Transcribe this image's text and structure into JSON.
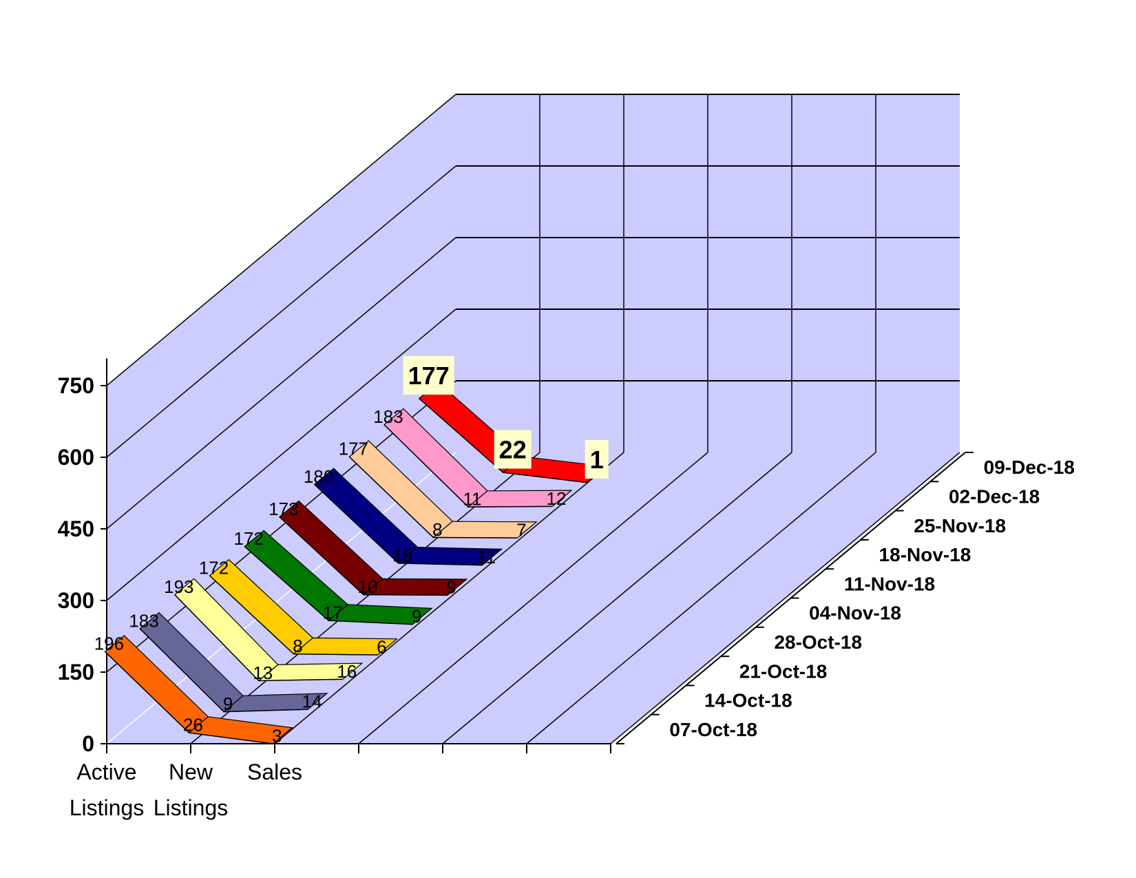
{
  "chart_data": {
    "type": "line",
    "subtype": "3d-line",
    "categories": [
      "Active Listings",
      "New Listings",
      "Sales"
    ],
    "category_label_lines": [
      [
        "Active",
        "Listings"
      ],
      [
        "New",
        "Listings"
      ],
      [
        "Sales"
      ]
    ],
    "y_ticks": [
      "0",
      "150",
      "300",
      "450",
      "600",
      "750"
    ],
    "ylim": [
      0,
      750
    ],
    "grid": true,
    "series": [
      {
        "name": "07-Oct-18",
        "values": [
          196,
          26,
          3
        ],
        "color": "#ff6600"
      },
      {
        "name": "14-Oct-18",
        "values": [
          183,
          9,
          14
        ],
        "color": "#666699"
      },
      {
        "name": "21-Oct-18",
        "values": [
          193,
          13,
          16
        ],
        "color": "#ffff99"
      },
      {
        "name": "28-Oct-18",
        "values": [
          172,
          8,
          6
        ],
        "color": "#ffcc00"
      },
      {
        "name": "04-Nov-18",
        "values": [
          172,
          17,
          9
        ],
        "color": "#007700"
      },
      {
        "name": "11-Nov-18",
        "values": [
          173,
          10,
          9
        ],
        "color": "#770000"
      },
      {
        "name": "18-Nov-18",
        "values": [
          180,
          15,
          11
        ],
        "color": "#000080"
      },
      {
        "name": "25-Nov-18",
        "values": [
          177,
          8,
          7
        ],
        "color": "#ffcc99"
      },
      {
        "name": "02-Dec-18",
        "values": [
          183,
          11,
          12
        ],
        "color": "#ff99cc"
      },
      {
        "name": "09-Dec-18",
        "values": [
          177,
          22,
          1
        ],
        "color": "#ff0000"
      }
    ],
    "highlight_series": "09-Dec-18",
    "colors": {
      "wall": "#ccccff",
      "label_box": "#ffffcc",
      "grid": "#000000"
    }
  }
}
